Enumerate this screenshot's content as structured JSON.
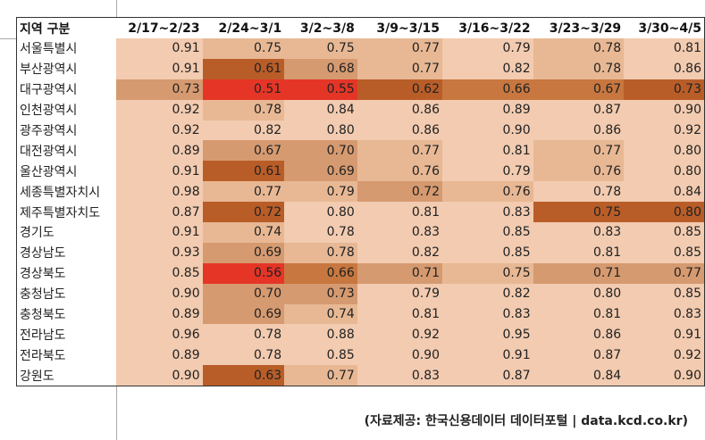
{
  "chart_data": {
    "type": "heatmap",
    "corner_header": "지역 구분",
    "columns": [
      "2/17~2/23",
      "2/24~3/1",
      "3/2~3/8",
      "3/9~3/15",
      "3/16~3/22",
      "3/23~3/29",
      "3/30~4/5"
    ],
    "rows": [
      {
        "region": "서울특별시",
        "values": [
          "0.91",
          "0.75",
          "0.75",
          "0.77",
          "0.79",
          "0.78",
          "0.81"
        ],
        "shade": [
          0,
          1,
          1,
          1,
          0,
          1,
          0
        ]
      },
      {
        "region": "부산광역시",
        "values": [
          "0.91",
          "0.61",
          "0.68",
          "0.77",
          "0.82",
          "0.78",
          "0.86"
        ],
        "shade": [
          0,
          4,
          2,
          1,
          0,
          1,
          0
        ]
      },
      {
        "region": "대구광역시",
        "values": [
          "0.73",
          "0.51",
          "0.55",
          "0.62",
          "0.66",
          "0.67",
          "0.73"
        ],
        "shade": [
          2,
          5,
          5,
          4,
          3,
          3,
          4
        ]
      },
      {
        "region": "인천광역시",
        "values": [
          "0.92",
          "0.78",
          "0.84",
          "0.86",
          "0.89",
          "0.87",
          "0.90"
        ],
        "shade": [
          0,
          1,
          0,
          0,
          0,
          0,
          0
        ]
      },
      {
        "region": "광주광역시",
        "values": [
          "0.92",
          "0.82",
          "0.80",
          "0.86",
          "0.90",
          "0.86",
          "0.92"
        ],
        "shade": [
          0,
          0,
          0,
          0,
          0,
          0,
          0
        ]
      },
      {
        "region": "대전광역시",
        "values": [
          "0.89",
          "0.67",
          "0.70",
          "0.77",
          "0.81",
          "0.77",
          "0.80"
        ],
        "shade": [
          0,
          2,
          2,
          1,
          0,
          1,
          0
        ]
      },
      {
        "region": "울산광역시",
        "values": [
          "0.91",
          "0.61",
          "0.69",
          "0.76",
          "0.79",
          "0.76",
          "0.80"
        ],
        "shade": [
          0,
          4,
          2,
          1,
          0,
          1,
          0
        ]
      },
      {
        "region": "세종특별자치시",
        "values": [
          "0.98",
          "0.77",
          "0.79",
          "0.72",
          "0.76",
          "0.78",
          "0.84"
        ],
        "shade": [
          0,
          1,
          1,
          2,
          1,
          0,
          0
        ]
      },
      {
        "region": "제주특별자치도",
        "values": [
          "0.87",
          "0.72",
          "0.80",
          "0.81",
          "0.83",
          "0.75",
          "0.80"
        ],
        "shade": [
          0,
          4,
          0,
          0,
          0,
          4,
          4
        ]
      },
      {
        "region": "경기도",
        "values": [
          "0.91",
          "0.74",
          "0.78",
          "0.83",
          "0.85",
          "0.83",
          "0.85"
        ],
        "shade": [
          0,
          1,
          0,
          0,
          0,
          0,
          0
        ]
      },
      {
        "region": "경상남도",
        "values": [
          "0.93",
          "0.69",
          "0.78",
          "0.82",
          "0.85",
          "0.81",
          "0.85"
        ],
        "shade": [
          0,
          2,
          1,
          0,
          0,
          0,
          0
        ]
      },
      {
        "region": "경상북도",
        "values": [
          "0.85",
          "0.56",
          "0.66",
          "0.71",
          "0.75",
          "0.71",
          "0.77"
        ],
        "shade": [
          0,
          5,
          3,
          2,
          1,
          2,
          2
        ]
      },
      {
        "region": "충청남도",
        "values": [
          "0.90",
          "0.70",
          "0.73",
          "0.79",
          "0.82",
          "0.80",
          "0.85"
        ],
        "shade": [
          0,
          2,
          2,
          0,
          0,
          0,
          0
        ]
      },
      {
        "region": "충청북도",
        "values": [
          "0.89",
          "0.69",
          "0.74",
          "0.81",
          "0.83",
          "0.81",
          "0.83"
        ],
        "shade": [
          0,
          2,
          1,
          0,
          0,
          0,
          0
        ]
      },
      {
        "region": "전라남도",
        "values": [
          "0.96",
          "0.78",
          "0.88",
          "0.92",
          "0.95",
          "0.86",
          "0.91"
        ],
        "shade": [
          0,
          0,
          0,
          0,
          0,
          0,
          0
        ]
      },
      {
        "region": "전라북도",
        "values": [
          "0.89",
          "0.78",
          "0.85",
          "0.90",
          "0.91",
          "0.87",
          "0.92"
        ],
        "shade": [
          0,
          0,
          0,
          0,
          0,
          0,
          0
        ]
      },
      {
        "region": "강원도",
        "values": [
          "0.90",
          "0.63",
          "0.77",
          "0.83",
          "0.87",
          "0.84",
          "0.90"
        ],
        "shade": [
          0,
          4,
          1,
          0,
          0,
          0,
          0
        ]
      }
    ],
    "palette": [
      "#f2cbb0",
      "#e8b894",
      "#d69a70",
      "#c7773f",
      "#b95d28",
      "#e53526"
    ]
  },
  "footnote": "(자료제공: 한국신용데이터 데이터포털 | data.kcd.co.kr)"
}
